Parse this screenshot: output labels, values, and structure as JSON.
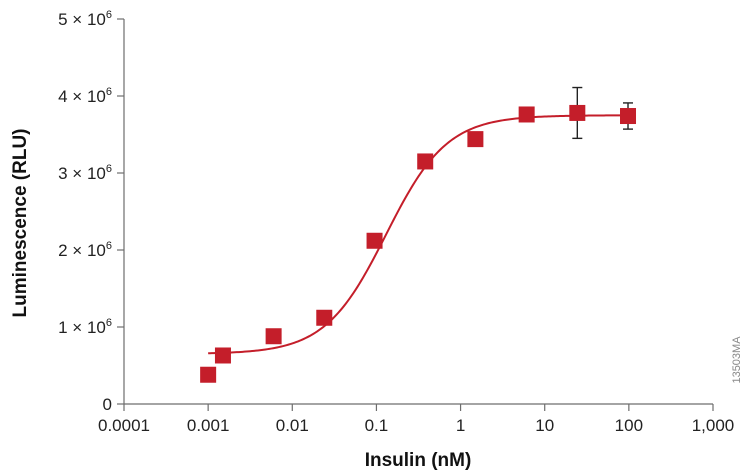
{
  "chart_data": {
    "type": "scatter",
    "xlabel": "Insulin (nM)",
    "ylabel": "Luminescence (RLU)",
    "x_scale": "log",
    "xlim": [
      0.0001,
      1000
    ],
    "ylim": [
      0,
      5000000
    ],
    "x_ticks": [
      {
        "value": 0.0001,
        "label": "0.0001"
      },
      {
        "value": 0.001,
        "label": "0.001"
      },
      {
        "value": 0.01,
        "label": "0.01"
      },
      {
        "value": 0.1,
        "label": "0.1"
      },
      {
        "value": 1,
        "label": "1"
      },
      {
        "value": 10,
        "label": "10"
      },
      {
        "value": 100,
        "label": "100"
      },
      {
        "value": 1000,
        "label": "1,000"
      }
    ],
    "y_ticks": [
      {
        "value": 0,
        "label": "0"
      },
      {
        "value": 1000000,
        "label": "1 × 10",
        "exp": "6"
      },
      {
        "value": 2000000,
        "label": "2 × 10",
        "exp": "6"
      },
      {
        "value": 3000000,
        "label": "3 × 10",
        "exp": "6"
      },
      {
        "value": 4000000,
        "label": "4 × 10",
        "exp": "6"
      },
      {
        "value": 5000000,
        "label": "5 × 10",
        "exp": "6"
      }
    ],
    "points": [
      {
        "x": 0.001,
        "y": 380000,
        "err": 0
      },
      {
        "x": 0.0015,
        "y": 630000,
        "err": 0
      },
      {
        "x": 0.006,
        "y": 880000,
        "err": 0
      },
      {
        "x": 0.024,
        "y": 1120000,
        "err": 0
      },
      {
        "x": 0.095,
        "y": 2120000,
        "err": 0
      },
      {
        "x": 0.38,
        "y": 3150000,
        "err": 0
      },
      {
        "x": 1.5,
        "y": 3440000,
        "err": 0
      },
      {
        "x": 6.1,
        "y": 3760000,
        "err": 0
      },
      {
        "x": 24.4,
        "y": 3780000,
        "err": 330000
      },
      {
        "x": 97.7,
        "y": 3740000,
        "err": 170000
      }
    ],
    "fit": {
      "model": "four-parameter logistic",
      "bottom": 650000,
      "top": 3750000,
      "ec50": 0.13,
      "hill": 1.2,
      "x_range": [
        0.001,
        100
      ]
    },
    "grid": false,
    "legend": "none",
    "colors": {
      "marker": "#c41e2a",
      "curve": "#c41e2a",
      "axis": "#6d6d6d",
      "errorbar": "#222222"
    }
  },
  "figure_code": "13503MA"
}
